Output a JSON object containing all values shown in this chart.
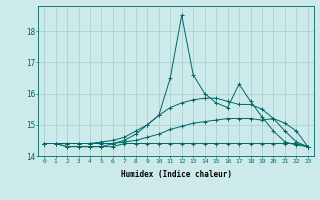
{
  "xlabel": "Humidex (Indice chaleur)",
  "bg_color": "#cceaea",
  "grid_color": "#aacccc",
  "line_color": "#006666",
  "xlim": [
    -0.5,
    23.5
  ],
  "ylim": [
    14.0,
    18.8
  ],
  "yticks": [
    14,
    15,
    16,
    17,
    18
  ],
  "xticks": [
    0,
    1,
    2,
    3,
    4,
    5,
    6,
    7,
    8,
    9,
    10,
    11,
    12,
    13,
    14,
    15,
    16,
    17,
    18,
    19,
    20,
    21,
    22,
    23
  ],
  "series": [
    {
      "x": [
        0,
        1,
        2,
        3,
        4,
        5,
        6,
        7,
        8,
        9,
        10,
        11,
        12,
        13,
        14,
        15,
        16,
        17,
        18,
        19,
        20,
        21,
        22,
        23
      ],
      "y": [
        14.4,
        14.4,
        14.3,
        14.3,
        14.3,
        14.3,
        14.3,
        14.4,
        14.4,
        14.4,
        14.4,
        14.4,
        14.4,
        14.4,
        14.4,
        14.4,
        14.4,
        14.4,
        14.4,
        14.4,
        14.4,
        14.4,
        14.4,
        14.3
      ]
    },
    {
      "x": [
        0,
        1,
        2,
        3,
        4,
        5,
        6,
        7,
        8,
        9,
        10,
        11,
        12,
        13,
        14,
        15,
        16,
        17,
        18,
        19,
        20,
        21,
        22,
        23
      ],
      "y": [
        14.4,
        14.4,
        14.4,
        14.4,
        14.4,
        14.4,
        14.4,
        14.45,
        14.5,
        14.6,
        14.7,
        14.85,
        14.95,
        15.05,
        15.1,
        15.15,
        15.2,
        15.2,
        15.2,
        15.15,
        15.2,
        15.05,
        14.8,
        14.3
      ]
    },
    {
      "x": [
        0,
        1,
        2,
        3,
        4,
        5,
        6,
        7,
        8,
        9,
        10,
        11,
        12,
        13,
        14,
        15,
        16,
        17,
        18,
        19,
        20,
        21,
        22,
        23
      ],
      "y": [
        14.4,
        14.4,
        14.4,
        14.4,
        14.4,
        14.45,
        14.5,
        14.6,
        14.8,
        15.0,
        15.3,
        15.55,
        15.7,
        15.8,
        15.85,
        15.85,
        15.75,
        15.65,
        15.65,
        15.5,
        15.2,
        14.8,
        14.45,
        14.3
      ]
    },
    {
      "x": [
        0,
        1,
        2,
        3,
        4,
        5,
        6,
        7,
        8,
        9,
        10,
        11,
        12,
        13,
        14,
        15,
        16,
        17,
        18,
        19,
        20,
        21,
        22,
        23
      ],
      "y": [
        14.4,
        14.4,
        14.3,
        14.3,
        14.3,
        14.3,
        14.4,
        14.5,
        14.7,
        15.0,
        15.3,
        16.5,
        18.5,
        16.6,
        16.0,
        15.7,
        15.55,
        16.3,
        15.75,
        15.25,
        14.8,
        14.45,
        14.35,
        14.3
      ]
    }
  ]
}
